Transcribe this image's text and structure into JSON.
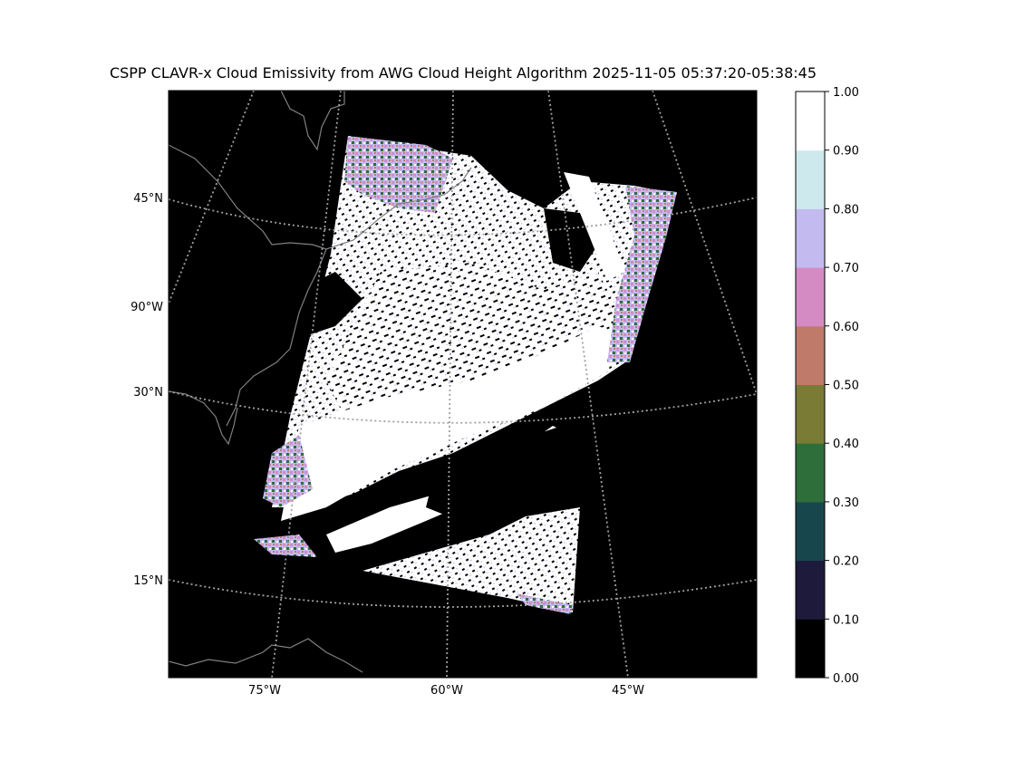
{
  "title": "CSPP CLAVR-x Cloud Emissivity from AWG Cloud Height Algorithm 2025-11-05 05:37:20-05:38:45",
  "map": {
    "background_color": "#000000",
    "coastline_color": "#808080",
    "gridline_color": "#a0a0a0",
    "lat_labels": [
      "45°N",
      "90°W",
      "30°N",
      "15°N"
    ],
    "lon_labels": [
      "75°W",
      "60°W",
      "45°W"
    ]
  },
  "colorbar": {
    "tick_labels": [
      "0.00",
      "0.10",
      "0.20",
      "0.30",
      "0.40",
      "0.50",
      "0.60",
      "0.70",
      "0.80",
      "0.90",
      "1.00"
    ],
    "colors": [
      "#000000",
      "#1e1a3c",
      "#17474d",
      "#2e6e3a",
      "#7a7b34",
      "#c07a6a",
      "#d48bc4",
      "#c3baf0",
      "#cde9ee",
      "#ffffff"
    ]
  }
}
